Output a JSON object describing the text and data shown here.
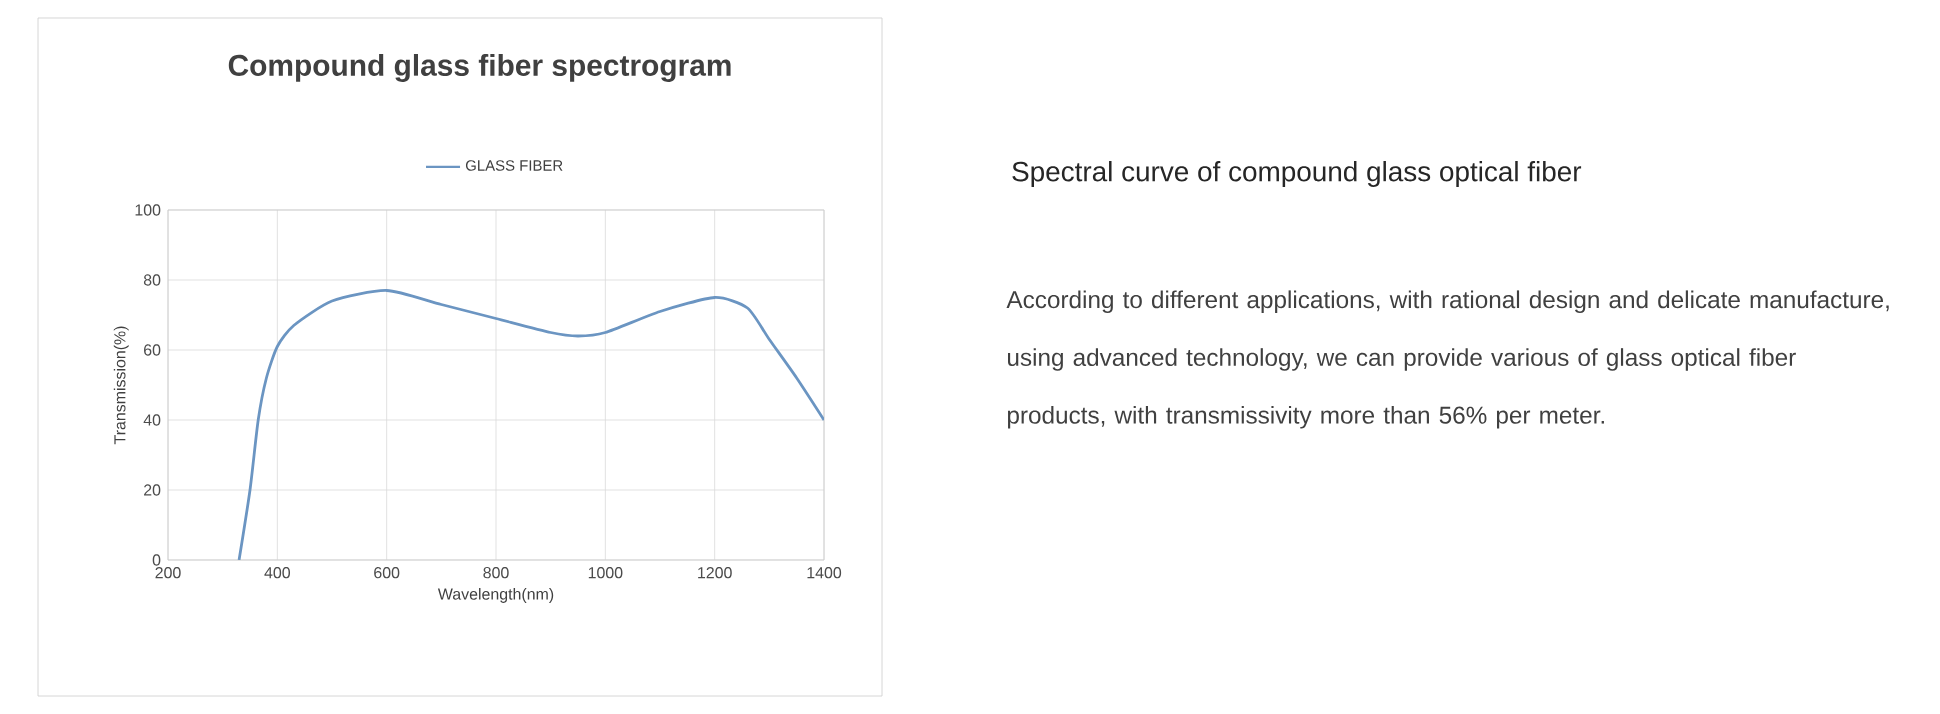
{
  "chart_data": {
    "type": "line",
    "title": "Compound glass fiber spectrogram",
    "xlabel": "Wavelength(nm)",
    "ylabel": "Transmission(%)",
    "series": [
      {
        "name": "GLASS FIBER",
        "color": "#6b95c2",
        "x": [
          330,
          350,
          365,
          380,
          400,
          430,
          500,
          600,
          700,
          800,
          900,
          950,
          1000,
          1100,
          1200,
          1260,
          1300,
          1350,
          1400
        ],
        "values": [
          0,
          20,
          40,
          52,
          61,
          67,
          74,
          77,
          73,
          69,
          65,
          64,
          65,
          71,
          75,
          72,
          63,
          52,
          40
        ]
      }
    ],
    "xlim": [
      200,
      1400
    ],
    "xticks": [
      200,
      400,
      600,
      800,
      1000,
      1200,
      1400
    ],
    "ylim": [
      0,
      100
    ],
    "yticks": [
      0,
      20,
      40,
      60,
      80,
      100
    ],
    "grid": true,
    "legend": "top",
    "annotations": [
      "Spectral curve of compound glass optical fiber",
      "According to different applications, with rational design and delicate manufacture, using advanced technology, we can provide various of glass optical fiber products, with transmissivity more than 56% per meter."
    ]
  }
}
